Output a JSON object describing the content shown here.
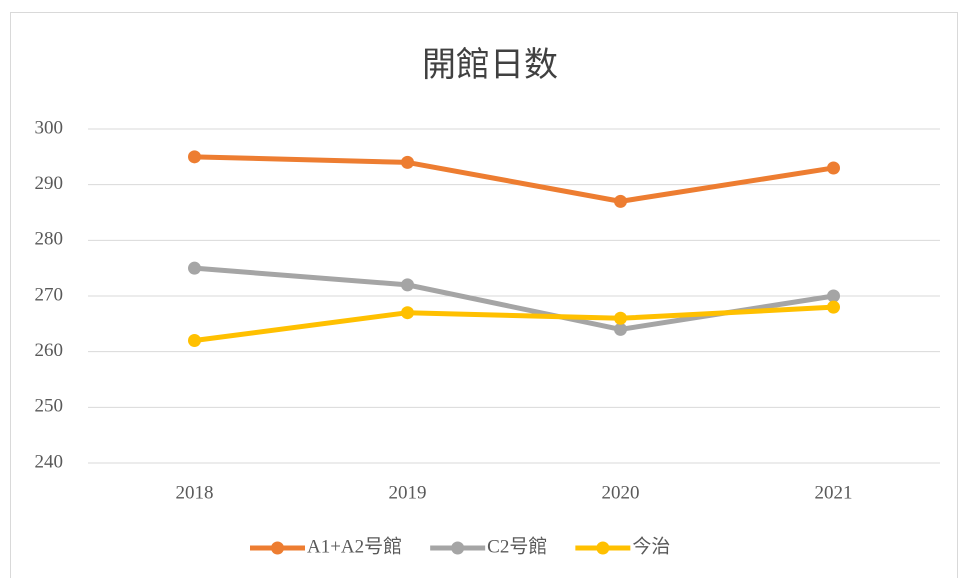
{
  "chart_data": {
    "type": "line",
    "title": "開館日数",
    "categories": [
      "2018",
      "2019",
      "2020",
      "2021"
    ],
    "series": [
      {
        "name": "A1+A2号館",
        "color": "#ED7D31",
        "values": [
          295,
          294,
          287,
          293
        ]
      },
      {
        "name": "C2号館",
        "color": "#A5A5A5",
        "values": [
          275,
          272,
          264,
          270
        ]
      },
      {
        "name": "今治",
        "color": "#FFC000",
        "values": [
          262,
          267,
          266,
          268
        ]
      }
    ],
    "ylim": [
      240,
      300
    ],
    "yticks": [
      240,
      250,
      260,
      270,
      280,
      290,
      300
    ],
    "grid": true,
    "legend": "bottom"
  }
}
